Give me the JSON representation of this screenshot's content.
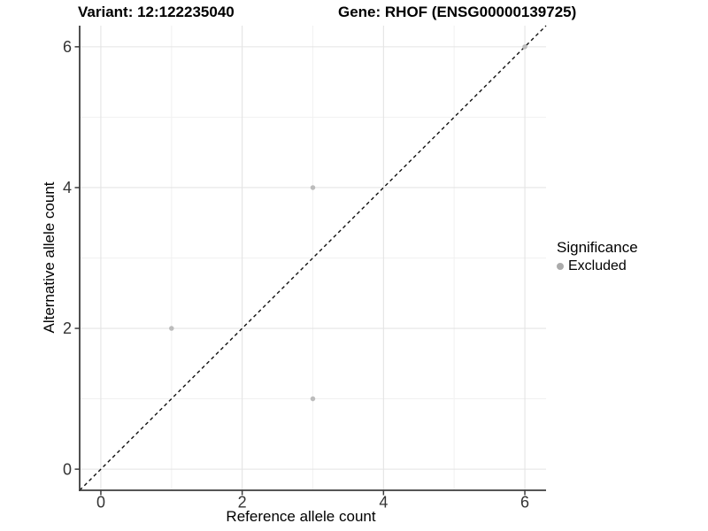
{
  "titles": {
    "variant": "Variant: 12:122235040",
    "gene": "Gene: RHOF (ENSG00000139725)"
  },
  "chart_data": {
    "type": "scatter",
    "title": "Variant: 12:122235040 | Gene: RHOF (ENSG00000139725)",
    "xlabel": "Reference allele count",
    "ylabel": "Alternative allele count",
    "xlim": [
      -0.3,
      6.3
    ],
    "ylim": [
      -0.3,
      6.3
    ],
    "xticks": [
      0,
      2,
      4,
      6
    ],
    "yticks": [
      0,
      2,
      4,
      6
    ],
    "xticks_minor": [
      1,
      3,
      5
    ],
    "yticks_minor": [
      1,
      3,
      5
    ],
    "grid": "major+minor",
    "series": [
      {
        "name": "Excluded",
        "color": "#bcbcbc",
        "points": [
          [
            1,
            2
          ],
          [
            3,
            4
          ],
          [
            3,
            1
          ],
          [
            6,
            6
          ]
        ]
      }
    ],
    "reference_line": {
      "type": "identity y=x",
      "style": "dashed",
      "color": "#111111"
    },
    "legend": {
      "position": "right",
      "title": "Significance",
      "items": [
        {
          "label": "Excluded",
          "color": "#ababab"
        }
      ]
    }
  },
  "colors": {
    "background": "#ffffff",
    "grid_major": "#e4e4e4",
    "grid_minor": "#f1f1f1",
    "axis_line": "#3d3d3d",
    "tick_text": "#333333",
    "point": "#bcbcbc",
    "ref_line": "#111111"
  }
}
